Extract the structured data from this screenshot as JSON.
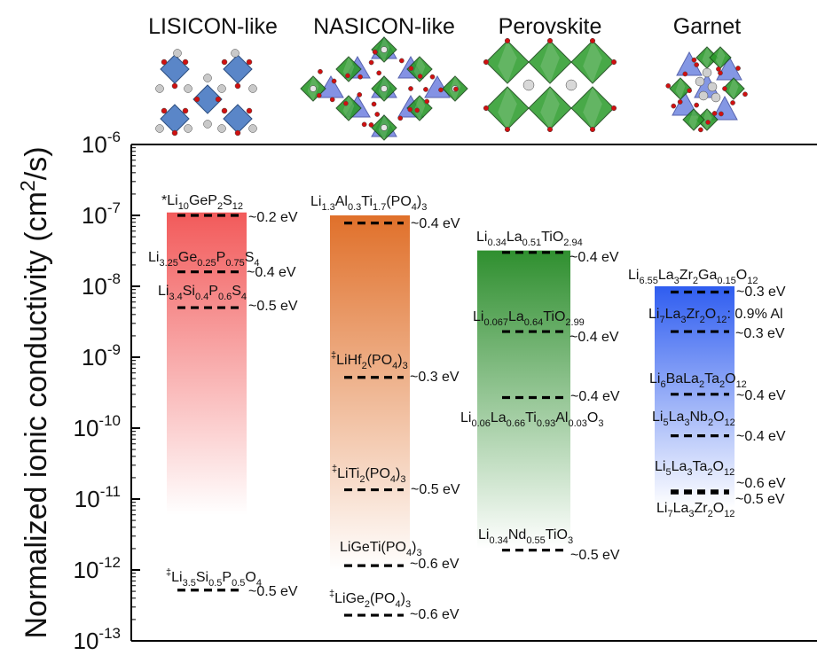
{
  "colors": {
    "lisicon": "#f25a5a",
    "nasicon": "#e0702a",
    "perovskite": "#2f8f2f",
    "garnet": "#2f5df0",
    "level_line": "#000000"
  },
  "chart_data": {
    "type": "bar",
    "ylabel": "Normalized ionic conductivity (cm²/s)",
    "yscale": "log",
    "ylim": [
      1e-13,
      1e-06
    ],
    "ytick_labels": [
      "10-6",
      "10-7",
      "10-8",
      "10-9",
      "10-10",
      "10-11",
      "10-12",
      "10-13"
    ],
    "categories": [
      "LISICON-like",
      "NASICON-like",
      "Perovskite",
      "Garnet"
    ],
    "structure_icons": [
      "lisicon-crystal-structure",
      "nasicon-crystal-structure",
      "perovskite-crystal-structure",
      "garnet-crystal-structure"
    ],
    "bars": [
      {
        "category": "LISICON-like",
        "top": 1.1e-07,
        "bottom": 6e-12,
        "color_key": "lisicon"
      },
      {
        "category": "NASICON-like",
        "top": 1e-07,
        "bottom": 1e-12,
        "color_key": "nasicon"
      },
      {
        "category": "Perovskite",
        "top": 3.2e-08,
        "bottom": 2e-12,
        "color_key": "perovskite"
      },
      {
        "category": "Garnet",
        "top": 1e-08,
        "bottom": 7.5e-12,
        "color_key": "garnet"
      }
    ],
    "materials": [
      {
        "group": "LISICON-like",
        "formula": "*Li10GeP2S12",
        "value": 1e-07,
        "activation_energy": "~0.2 eV"
      },
      {
        "group": "LISICON-like",
        "formula": "Li3.25Ge0.25P0.75S4",
        "value": 1.6e-08,
        "activation_energy": "~0.4 eV"
      },
      {
        "group": "LISICON-like",
        "formula": "Li3.4Si0.4P0.6S4",
        "value": 5e-09,
        "activation_energy": "~0.5 eV"
      },
      {
        "group": "LISICON-like",
        "formula": "‡Li3.5Si0.5P0.5O4",
        "value": 5.2e-13,
        "activation_energy": "~0.5 eV"
      },
      {
        "group": "NASICON-like",
        "formula": "Li1.3Al0.3Ti1.7(PO4)3",
        "value": 7.8e-08,
        "activation_energy": "~0.4 eV"
      },
      {
        "group": "NASICON-like",
        "formula": "‡LiHf2(PO4)3",
        "value": 5.2e-10,
        "activation_energy": "~0.3 eV"
      },
      {
        "group": "NASICON-like",
        "formula": "‡LiTi2(PO4)3",
        "value": 1.35e-11,
        "activation_energy": "~0.5 eV"
      },
      {
        "group": "NASICON-like",
        "formula": "LiGeTi(PO4)3",
        "value": 1.15e-12,
        "activation_energy": "~0.6 eV"
      },
      {
        "group": "NASICON-like",
        "formula": "‡LiGe2(PO4)3",
        "value": 2.3e-13,
        "activation_energy": "~0.6 eV"
      },
      {
        "group": "Perovskite",
        "formula": "Li0.34La0.51TiO2.94",
        "value": 3e-08,
        "activation_energy": "~0.4 eV"
      },
      {
        "group": "Perovskite",
        "formula": "Li0.067La0.64TiO2.99",
        "value": 2.3e-09,
        "activation_energy": "~0.4 eV"
      },
      {
        "group": "Perovskite",
        "formula": "Li0.06La0.66Ti0.93Al0.03O3",
        "value": 2.7e-10,
        "activation_energy": "~0.4 eV"
      },
      {
        "group": "Perovskite",
        "formula": "Li0.34Nd0.55TiO3",
        "value": 1.9e-12,
        "activation_energy": "~0.5 eV"
      },
      {
        "group": "Garnet",
        "formula": "Li6.55La3Zr2Ga0.15O12",
        "value": 8.3e-09,
        "activation_energy": "~0.3 eV"
      },
      {
        "group": "Garnet",
        "formula": "Li7La3Zr2O12: 0.9% Al",
        "value": 2.3e-09,
        "activation_energy": "~0.3 eV"
      },
      {
        "group": "Garnet",
        "formula": "Li6BaLa2Ta2O12",
        "value": 3e-10,
        "activation_energy": "~0.4 eV"
      },
      {
        "group": "Garnet",
        "formula": "Li5La3Nb2O12",
        "value": 7.8e-11,
        "activation_energy": "~0.4 eV"
      },
      {
        "group": "Garnet",
        "formula": "Li5La3Ta2O12",
        "value": 1.3e-11,
        "activation_energy": "~0.6 eV"
      },
      {
        "group": "Garnet",
        "formula": "Li7La3Zr2O12",
        "value": 1.22e-11,
        "activation_energy": "~0.5 eV"
      }
    ]
  }
}
